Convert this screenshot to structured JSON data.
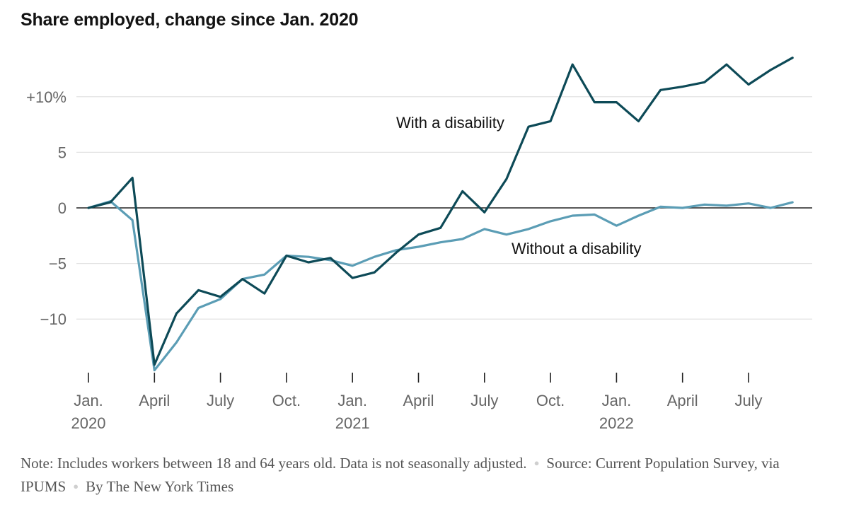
{
  "title": "Share employed, change since Jan. 2020",
  "chart_data": {
    "type": "line",
    "title": "Share employed, change since Jan. 2020",
    "xlabel": "",
    "ylabel": "",
    "x": [
      "2020-01",
      "2020-02",
      "2020-03",
      "2020-04",
      "2020-05",
      "2020-06",
      "2020-07",
      "2020-08",
      "2020-09",
      "2020-10",
      "2020-11",
      "2020-12",
      "2021-01",
      "2021-02",
      "2021-03",
      "2021-04",
      "2021-05",
      "2021-06",
      "2021-07",
      "2021-08",
      "2021-09",
      "2021-10",
      "2021-11",
      "2021-12",
      "2022-01",
      "2022-02",
      "2022-03",
      "2022-04",
      "2022-05",
      "2022-06",
      "2022-07",
      "2022-08",
      "2022-09"
    ],
    "series": [
      {
        "name": "With a disability",
        "color": "#0d4a57",
        "values": [
          0,
          0.5,
          2.7,
          -14.1,
          -9.5,
          -7.4,
          -8.0,
          -6.4,
          -7.7,
          -4.3,
          -4.9,
          -4.5,
          -6.3,
          -5.8,
          -4.0,
          -2.4,
          -1.8,
          1.5,
          -0.4,
          2.6,
          7.3,
          7.8,
          12.9,
          9.5,
          9.5,
          7.8,
          10.6,
          10.9,
          11.3,
          12.9,
          11.1,
          12.4,
          13.5
        ]
      },
      {
        "name": "Without a disability",
        "color": "#5b9db5",
        "values": [
          0,
          0.6,
          -1.1,
          -14.6,
          -12.1,
          -9.0,
          -8.2,
          -6.4,
          -6.0,
          -4.3,
          -4.4,
          -4.7,
          -5.2,
          -4.4,
          -3.8,
          -3.5,
          -3.1,
          -2.8,
          -1.9,
          -2.4,
          -1.9,
          -1.2,
          -0.7,
          -0.6,
          -1.6,
          -0.7,
          0.1,
          0.0,
          0.3,
          0.2,
          0.4,
          0.0,
          0.5
        ]
      }
    ],
    "ylim": [
      -15.2,
      14.5
    ],
    "yticks": [
      {
        "value": 10,
        "label": "+10%"
      },
      {
        "value": 5,
        "label": "5"
      },
      {
        "value": 0,
        "label": "0"
      },
      {
        "value": -5,
        "label": "−5"
      },
      {
        "value": -10,
        "label": "−10"
      }
    ],
    "xticks": [
      {
        "index": 0,
        "label": "Jan.",
        "year": "2020"
      },
      {
        "index": 3,
        "label": "April",
        "year": ""
      },
      {
        "index": 6,
        "label": "July",
        "year": ""
      },
      {
        "index": 9,
        "label": "Oct.",
        "year": ""
      },
      {
        "index": 12,
        "label": "Jan.",
        "year": "2021"
      },
      {
        "index": 15,
        "label": "April",
        "year": ""
      },
      {
        "index": 18,
        "label": "July",
        "year": ""
      },
      {
        "index": 21,
        "label": "Oct.",
        "year": ""
      },
      {
        "index": 24,
        "label": "Jan.",
        "year": "2022"
      },
      {
        "index": 27,
        "label": "April",
        "year": ""
      },
      {
        "index": 30,
        "label": "July",
        "year": ""
      }
    ],
    "annotations": [
      {
        "text": "With a disability",
        "series": 0
      },
      {
        "text": "Without a disability",
        "series": 1
      }
    ],
    "grid": true,
    "zero_line_color": "#222222",
    "grid_color": "#e2e2e2"
  },
  "footer": {
    "note": "Note: Includes workers between 18 and 64 years old. Data is not seasonally adjusted.",
    "source": "Source: Current Population Survey, via IPUMS",
    "credit": "By The New York Times"
  }
}
